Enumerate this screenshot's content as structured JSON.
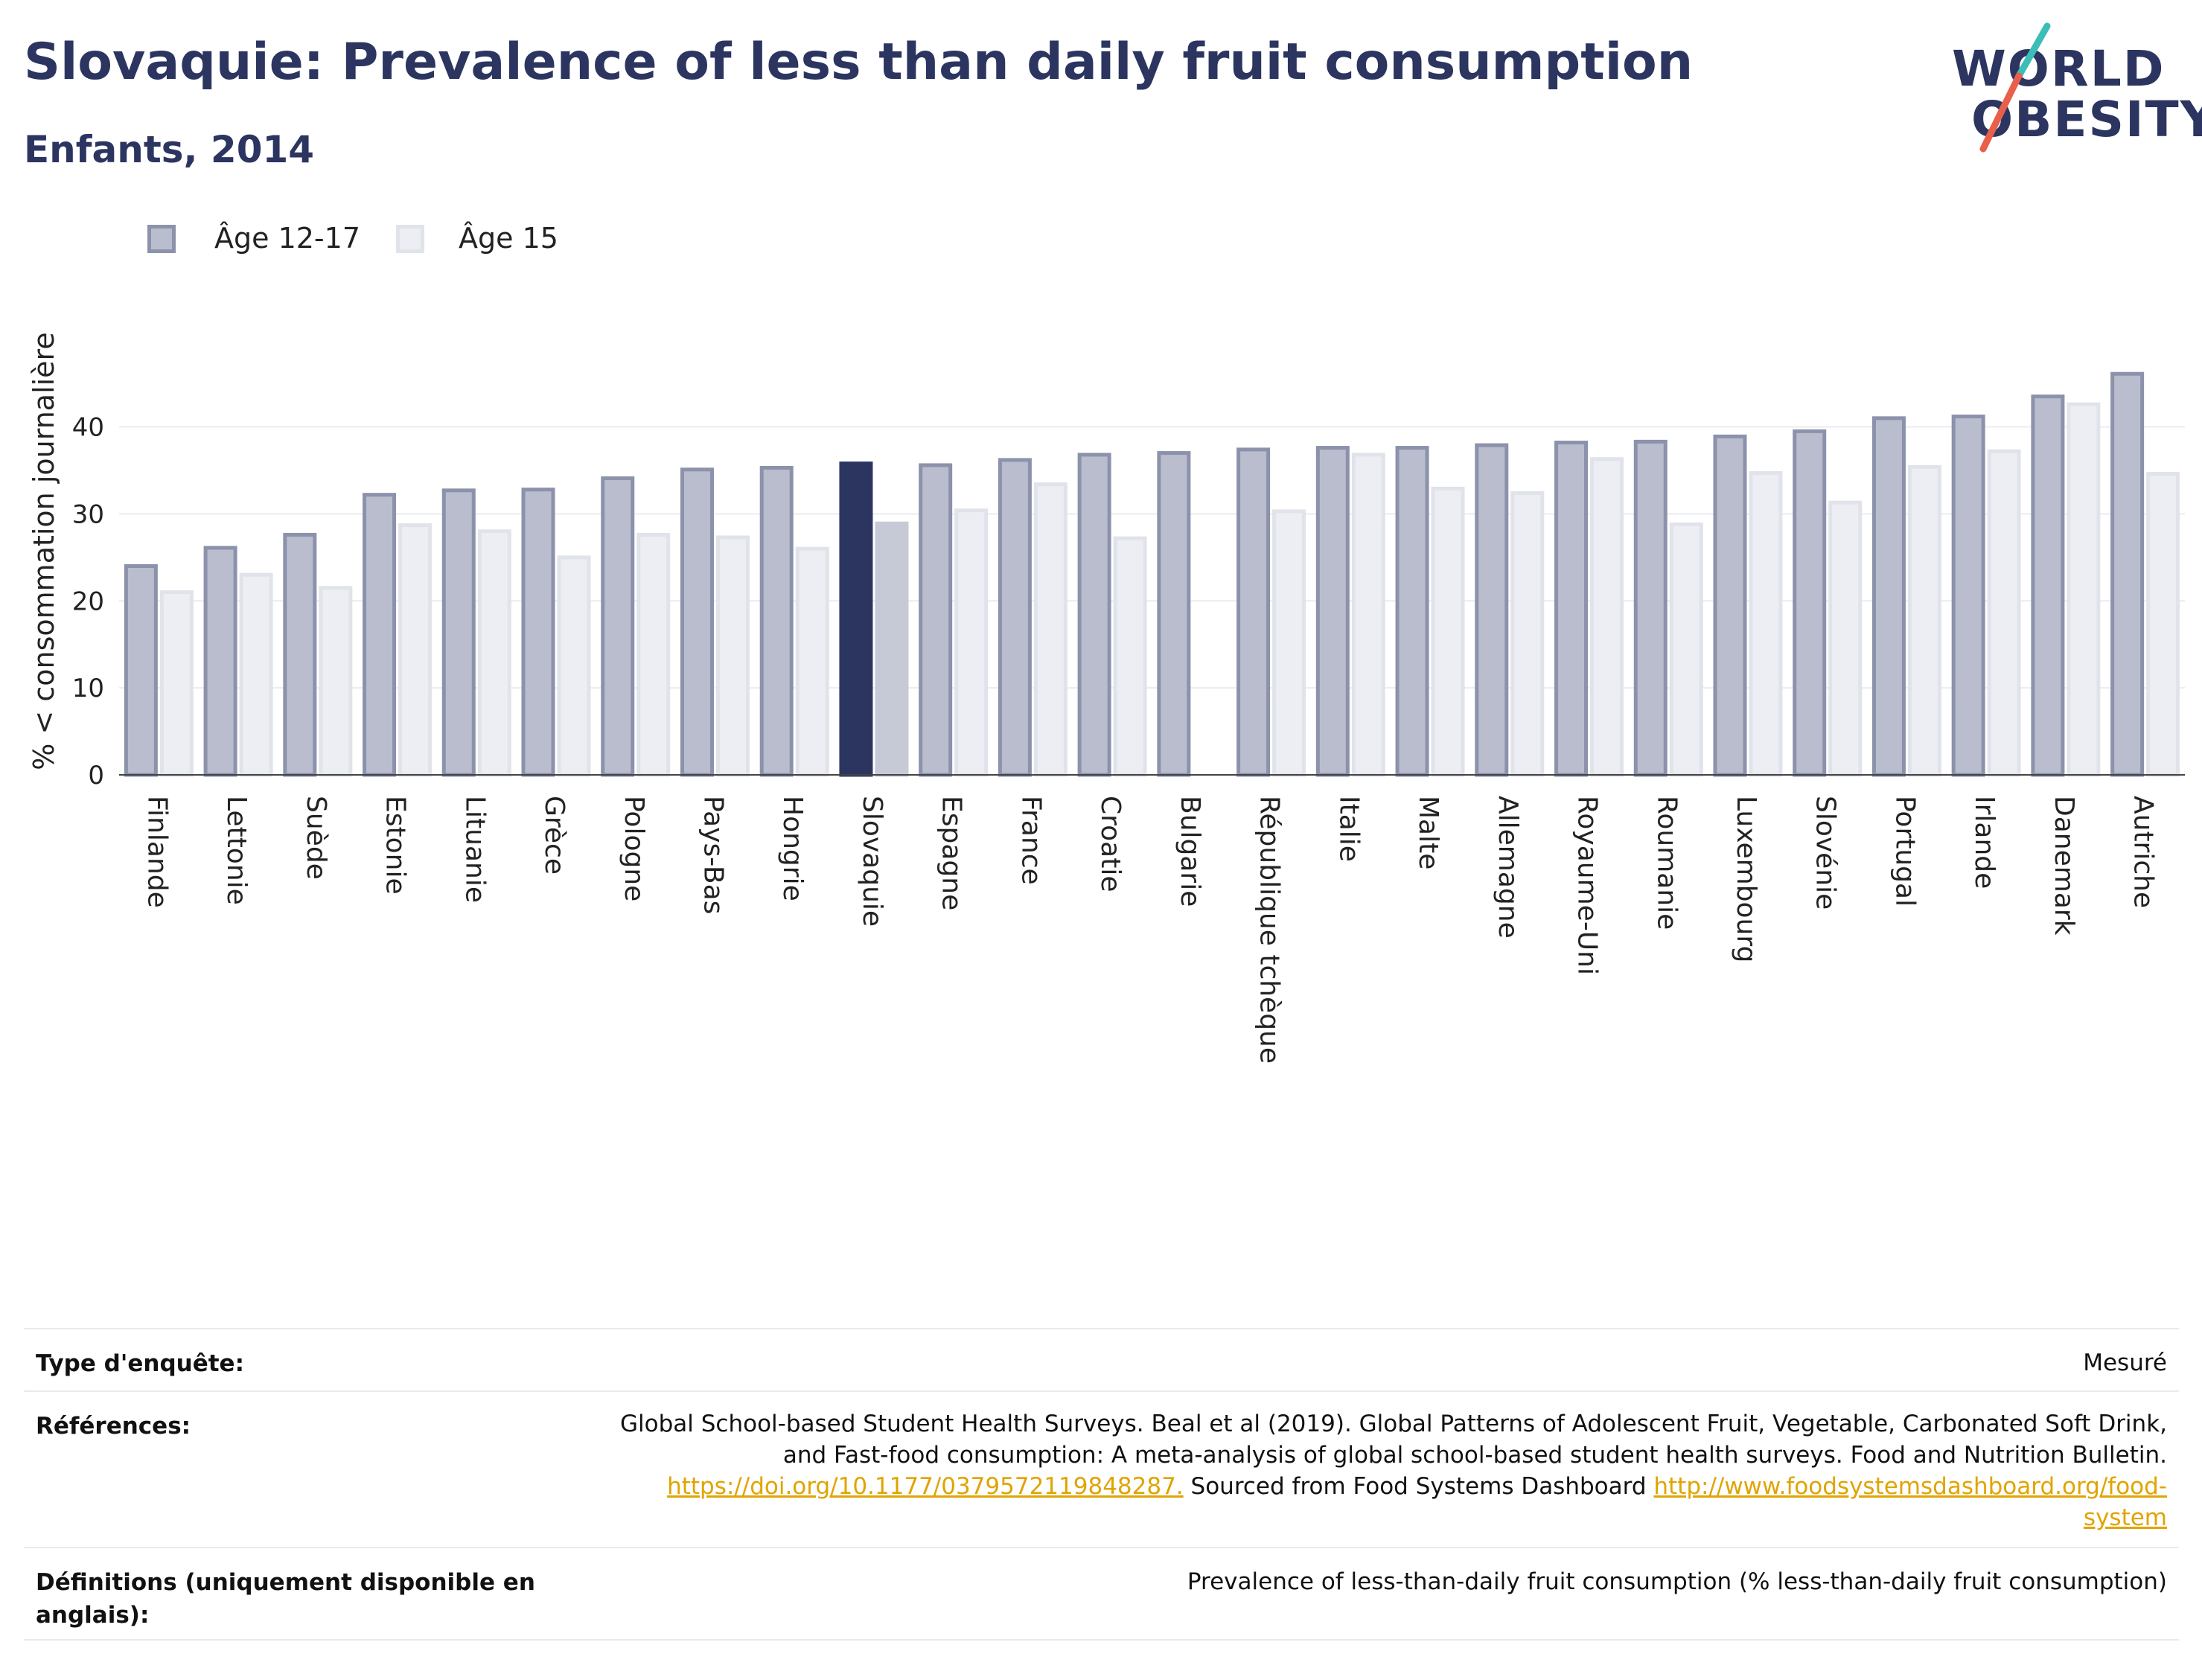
{
  "header": {
    "title": "Slovaquie: Prevalence of less than daily fruit consumption",
    "subtitle": "Enfants, 2014"
  },
  "logo": {
    "line1": "WORLD",
    "line2": "OBESITY",
    "colors": {
      "text": "#2b3560",
      "slash_teal": "#3dbdb8",
      "slash_coral": "#e8604c"
    }
  },
  "legend": {
    "items": [
      {
        "label": "Âge 12-17",
        "fill": "#b9bdcd",
        "stroke": "#8c92ab"
      },
      {
        "label": "Âge 15",
        "fill": "#eceef3",
        "stroke": "#e1e3ea"
      }
    ]
  },
  "chart_data": {
    "type": "bar",
    "ylabel": "% < consommation journalière",
    "xlabel": "",
    "ylim": [
      0,
      48
    ],
    "yticks": [
      0,
      10,
      20,
      30,
      40
    ],
    "grid": true,
    "legend_position": "top-left",
    "highlight_category": "Slovaquie",
    "colors": {
      "series1": "#b9bdcd",
      "series1_stroke": "#8c92ab",
      "series2": "#eceef3",
      "series2_stroke": "#e1e3ea",
      "highlight1": "#2b3560",
      "highlight2": "#c6c9d6"
    },
    "categories": [
      "Finlande",
      "Lettonie",
      "Suède",
      "Estonie",
      "Lituanie",
      "Grèce",
      "Pologne",
      "Pays-Bas",
      "Hongrie",
      "Slovaquie",
      "Espagne",
      "France",
      "Croatie",
      "Bulgarie",
      "République tchèque",
      "Italie",
      "Malte",
      "Allemagne",
      "Royaume-Uni",
      "Roumanie",
      "Luxembourg",
      "Slovénie",
      "Portugal",
      "Irlande",
      "Danemark",
      "Autriche"
    ],
    "series": [
      {
        "name": "Âge 12-17",
        "values": [
          24,
          26.1,
          27.6,
          32.2,
          32.7,
          32.8,
          34.1,
          35.1,
          35.3,
          35.8,
          35.6,
          36.2,
          36.8,
          37,
          37.4,
          37.6,
          37.6,
          37.9,
          38.2,
          38.3,
          38.9,
          39.5,
          41,
          41.2,
          43.5,
          46.1
        ]
      },
      {
        "name": "Âge 15",
        "values": [
          21,
          23,
          21.5,
          28.7,
          28,
          25,
          27.6,
          27.3,
          26,
          28.9,
          30.4,
          33.4,
          27.2,
          null,
          30.3,
          36.8,
          32.9,
          32.4,
          36.3,
          28.8,
          34.7,
          31.3,
          35.4,
          37.2,
          42.6,
          34.6
        ]
      }
    ]
  },
  "footer": {
    "rows": [
      {
        "label": "Type d'enquête:",
        "value": "Mesuré"
      },
      {
        "label": "Références:",
        "lines": [
          "Global School-based Student Health Surveys. Beal et al (2019). Global Patterns of Adolescent Fruit, Vegetable, Carbonated Soft Drink,",
          "and Fast-food consumption: A meta-analysis of global school-based student health surveys. Food and Nutrition Bulletin."
        ],
        "link1": "https://doi.org/10.1177/0379572119848287.",
        "mid": " Sourced from Food Systems Dashboard ",
        "link2a": "http://www.foodsystemsdashboard.org/food-",
        "link2b": "system"
      },
      {
        "label": "Définitions (uniquement disponible en anglais):",
        "value": "Prevalence of less-than-daily fruit consumption (% less-than-daily fruit consumption)"
      }
    ]
  }
}
